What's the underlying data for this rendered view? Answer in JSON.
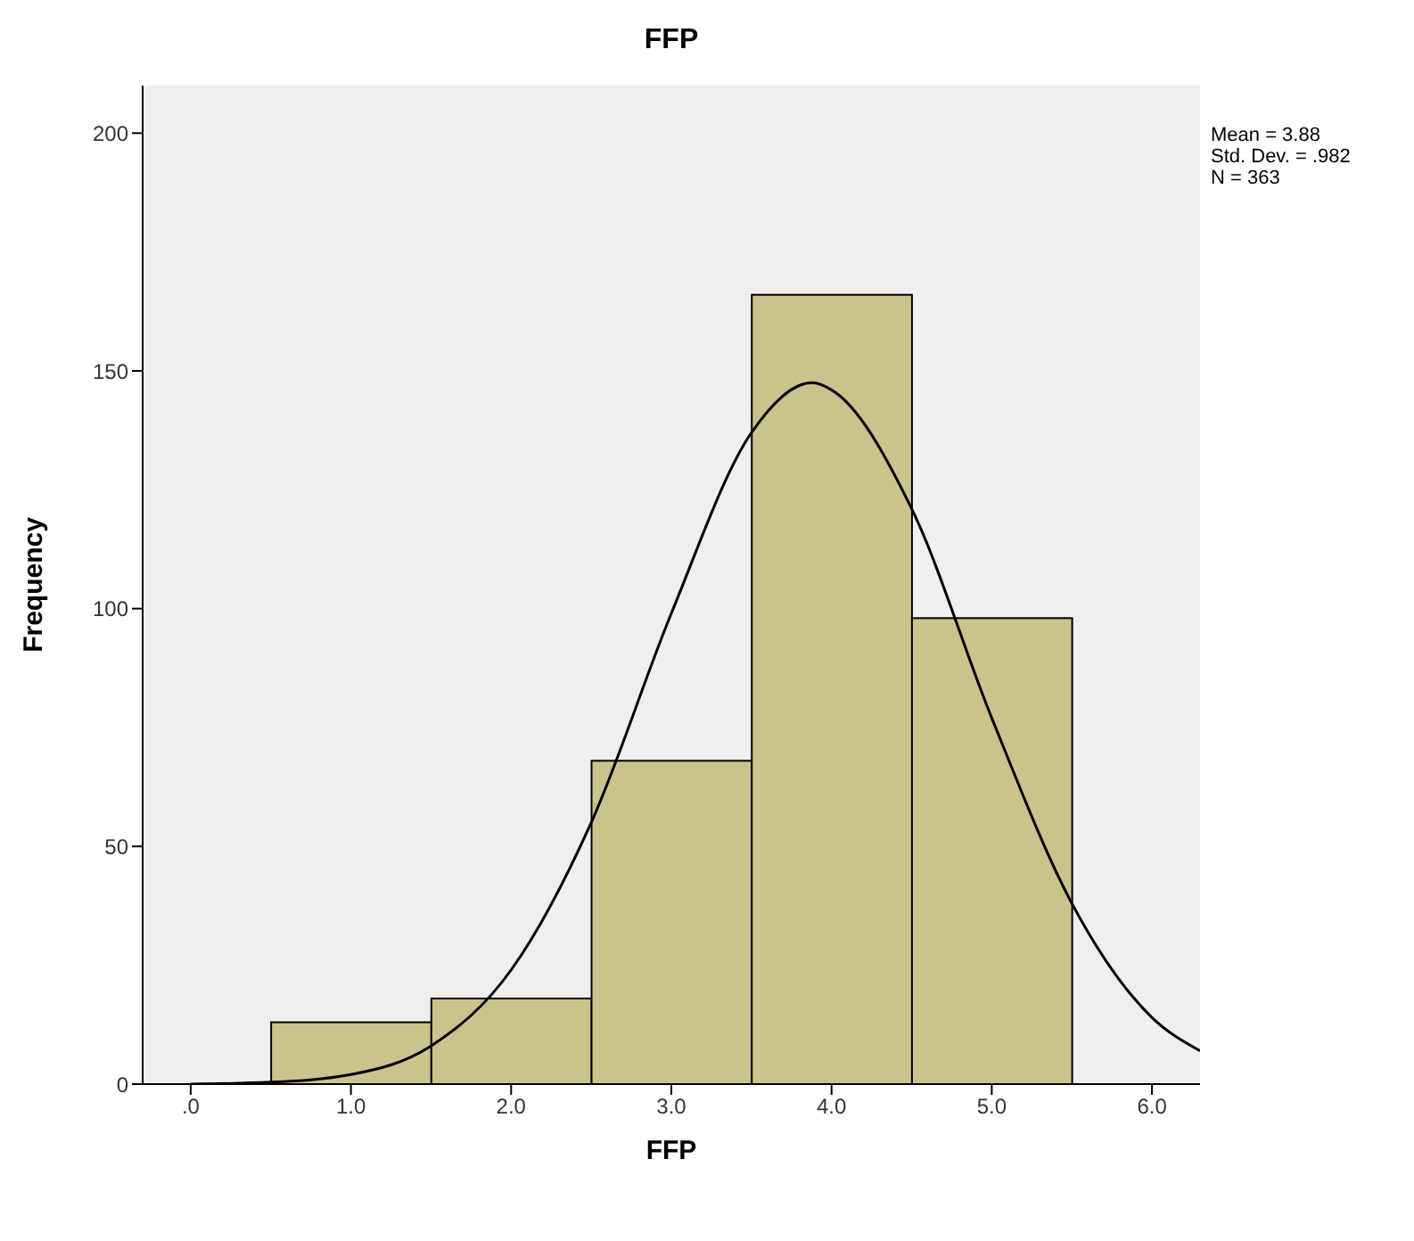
{
  "chart_data": {
    "type": "histogram",
    "title": "FFP",
    "xlabel": "FFP",
    "ylabel": "Frequency",
    "annotations": [
      "Mean = 3.88",
      "Std. Dev. = .982",
      "N = 363"
    ],
    "series": [
      {
        "bins": [
          0.5,
          1.5,
          2.5,
          3.5,
          4.5,
          5.5
        ],
        "values": [
          13,
          18,
          68,
          166,
          98
        ],
        "color": "#c9c48c"
      },
      {
        "type": "line",
        "x": [
          0,
          0.5,
          1,
          1.5,
          2,
          2.5,
          3,
          3.5,
          3.88,
          4,
          4.5,
          5,
          5.5,
          6,
          6.3
        ],
        "values": [
          0,
          0.4,
          2,
          8,
          24,
          55,
          99,
          137,
          147.5,
          146,
          121,
          77,
          38,
          14,
          7
        ],
        "color": "#000000"
      }
    ],
    "xlim": [
      -0.3,
      6.3
    ],
    "xticks": [
      {
        "value": 0,
        "label": ".0"
      },
      {
        "value": 1,
        "label": "1.0"
      },
      {
        "value": 2,
        "label": "2.0"
      },
      {
        "value": 3,
        "label": "3.0"
      },
      {
        "value": 4,
        "label": "4.0"
      },
      {
        "value": 5,
        "label": "5.0"
      },
      {
        "value": 6,
        "label": "6.0"
      }
    ],
    "ylim": [
      0,
      210
    ],
    "yticks": [
      0,
      50,
      100,
      150,
      200
    ],
    "grid": false,
    "legend": false,
    "marker": "none"
  }
}
